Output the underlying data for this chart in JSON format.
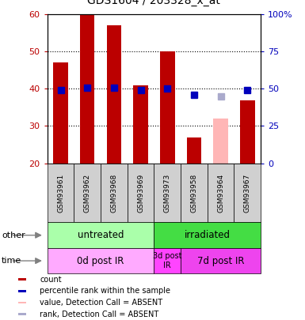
{
  "title": "GDS1604 / 203328_x_at",
  "samples": [
    "GSM93961",
    "GSM93962",
    "GSM93968",
    "GSM93969",
    "GSM93973",
    "GSM93958",
    "GSM93964",
    "GSM93967"
  ],
  "bar_values": [
    47,
    60,
    57,
    41,
    50,
    27,
    null,
    37
  ],
  "bar_absent_values": [
    null,
    null,
    null,
    null,
    null,
    null,
    32,
    null
  ],
  "rank_values": [
    49,
    51,
    51,
    49,
    50,
    46,
    null,
    49
  ],
  "rank_absent_values": [
    null,
    null,
    null,
    null,
    null,
    null,
    45,
    null
  ],
  "ylim": [
    20,
    60
  ],
  "right_ylim": [
    0,
    100
  ],
  "right_yticks": [
    0,
    25,
    50,
    75,
    100
  ],
  "right_yticklabels": [
    "0",
    "25",
    "50",
    "75",
    "100%"
  ],
  "yticks": [
    20,
    30,
    40,
    50,
    60
  ],
  "grid_lines": [
    30,
    40,
    50
  ],
  "bar_color": "#bb0000",
  "bar_absent_color": "#ffb6b6",
  "rank_color": "#0000bb",
  "rank_absent_color": "#aaaacc",
  "group_other": [
    [
      "untreated",
      0,
      4
    ],
    [
      "irradiated",
      4,
      8
    ]
  ],
  "group_time": [
    [
      "0d post IR",
      0,
      4
    ],
    [
      "3d post\nIR",
      4,
      5
    ],
    [
      "7d post IR",
      5,
      8
    ]
  ],
  "group_other_colors": [
    "#aaffaa",
    "#44dd44"
  ],
  "group_time_colors": [
    "#ffaaff",
    "#ff44ff",
    "#ee44ee"
  ],
  "other_label": "other",
  "time_label": "time",
  "legend_items": [
    {
      "label": "count",
      "color": "#bb0000"
    },
    {
      "label": "percentile rank within the sample",
      "color": "#0000bb"
    },
    {
      "label": "value, Detection Call = ABSENT",
      "color": "#ffb6b6"
    },
    {
      "label": "rank, Detection Call = ABSENT",
      "color": "#aaaacc"
    }
  ],
  "bar_width": 0.55,
  "rank_marker_size": 6,
  "fig_width": 3.85,
  "fig_height": 4.05,
  "dpi": 100
}
